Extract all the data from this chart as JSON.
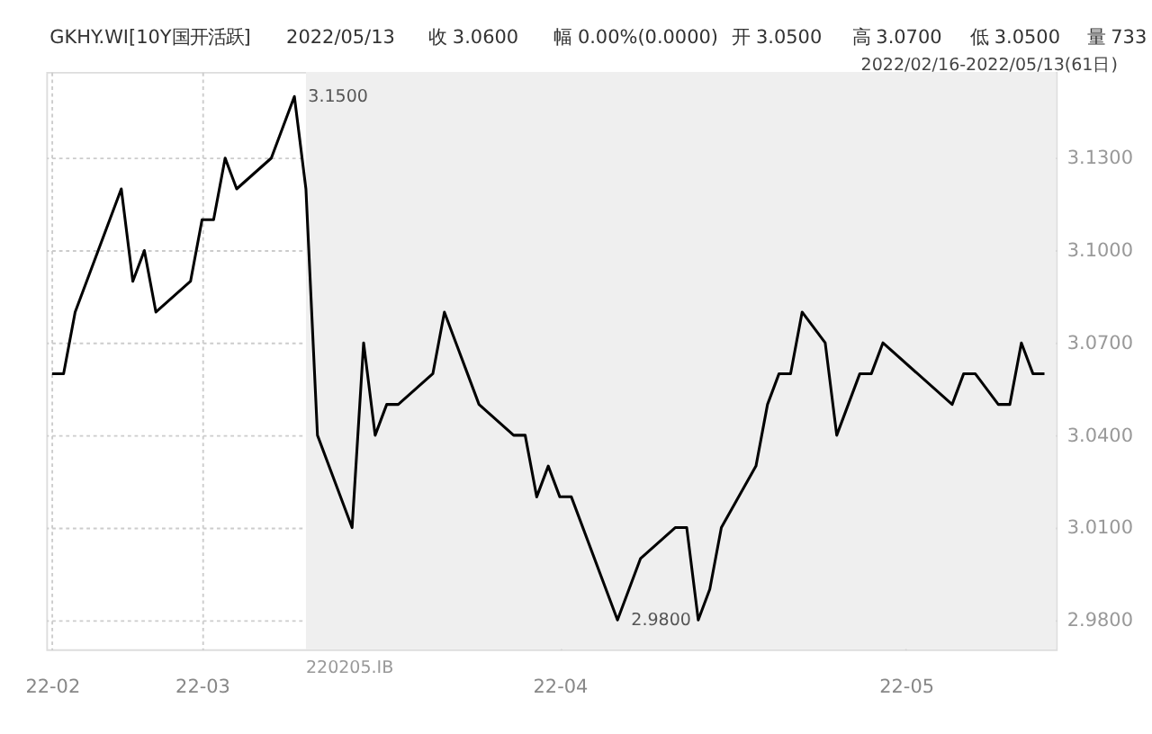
{
  "chart_data": {
    "type": "line",
    "title": "GKHY.WI[10Y国开活跃]",
    "subtitle": "2022/02/16-2022/05/13(61日)",
    "x": [
      "2022-02-16",
      "2022-02-17",
      "2022-02-18",
      "2022-02-21",
      "2022-02-22",
      "2022-02-23",
      "2022-02-24",
      "2022-02-25",
      "2022-02-28",
      "2022-03-01",
      "2022-03-02",
      "2022-03-03",
      "2022-03-04",
      "2022-03-07",
      "2022-03-08",
      "2022-03-09",
      "2022-03-10",
      "2022-03-11",
      "2022-03-14",
      "2022-03-15",
      "2022-03-16",
      "2022-03-17",
      "2022-03-18",
      "2022-03-21",
      "2022-03-22",
      "2022-03-23",
      "2022-03-24",
      "2022-03-25",
      "2022-03-28",
      "2022-03-29",
      "2022-03-30",
      "2022-03-31",
      "2022-04-01",
      "2022-04-02",
      "2022-04-06",
      "2022-04-07",
      "2022-04-08",
      "2022-04-11",
      "2022-04-12",
      "2022-04-13",
      "2022-04-14",
      "2022-04-15",
      "2022-04-18",
      "2022-04-19",
      "2022-04-20",
      "2022-04-21",
      "2022-04-22",
      "2022-04-24",
      "2022-04-25",
      "2022-04-26",
      "2022-04-27",
      "2022-04-28",
      "2022-04-29",
      "2022-05-05",
      "2022-05-06",
      "2022-05-07",
      "2022-05-09",
      "2022-05-10",
      "2022-05-11",
      "2022-05-12",
      "2022-05-13"
    ],
    "series": [
      {
        "color": "#000000",
        "values": [
          3.06,
          3.06,
          3.08,
          3.11,
          3.12,
          3.09,
          3.1,
          3.08,
          3.09,
          3.11,
          3.11,
          3.13,
          3.12,
          3.13,
          3.14,
          3.15,
          3.12,
          3.04,
          3.01,
          3.07,
          3.04,
          3.05,
          3.05,
          3.06,
          3.08,
          3.07,
          3.06,
          3.05,
          3.04,
          3.04,
          3.02,
          3.03,
          3.02,
          3.02,
          2.98,
          2.99,
          3.0,
          3.01,
          3.01,
          2.98,
          2.99,
          3.01,
          3.03,
          3.05,
          3.06,
          3.06,
          3.08,
          3.07,
          3.04,
          3.05,
          3.06,
          3.06,
          3.07,
          3.05,
          3.06,
          3.06,
          3.05,
          3.05,
          3.07,
          3.06,
          3.06
        ]
      }
    ],
    "xlim": [
      "2022-02-15T12:00",
      "2022-05-14"
    ],
    "xticks": [
      {
        "value": "2022-02-16",
        "label": "22-02"
      },
      {
        "value": "2022-03-01",
        "label": "22-03"
      },
      {
        "value": "2022-04-01",
        "label": "22-04"
      },
      {
        "value": "2022-05-01",
        "label": "22-05"
      }
    ],
    "ylim": [
      2.9705,
      3.158
    ],
    "yticks": [
      {
        "value": 2.98,
        "label": "2.9800"
      },
      {
        "value": 3.01,
        "label": "3.0100"
      },
      {
        "value": 3.04,
        "label": "3.0400"
      },
      {
        "value": 3.07,
        "label": "3.0700"
      },
      {
        "value": 3.1,
        "label": "3.1000"
      },
      {
        "value": 3.13,
        "label": "3.1300"
      }
    ],
    "bands": [
      {
        "axis": "x",
        "from": "2022-03-10",
        "to": "2022-05-14",
        "label": "220205.IB",
        "color": "#efefef"
      }
    ],
    "annotations": [
      "2022/05/13",
      "收 3.0600",
      "幅 0.00%(0.0000)",
      "开 3.0500",
      "高 3.0700",
      "低 3.0500",
      "量 733",
      {
        "text": "3.1500",
        "x": "2022-03-09",
        "y": 3.15
      },
      {
        "text": "2.9800",
        "x": "2022-04-06",
        "y": 2.98
      }
    ],
    "grid": true,
    "marker": "none",
    "line_style": "solid"
  }
}
